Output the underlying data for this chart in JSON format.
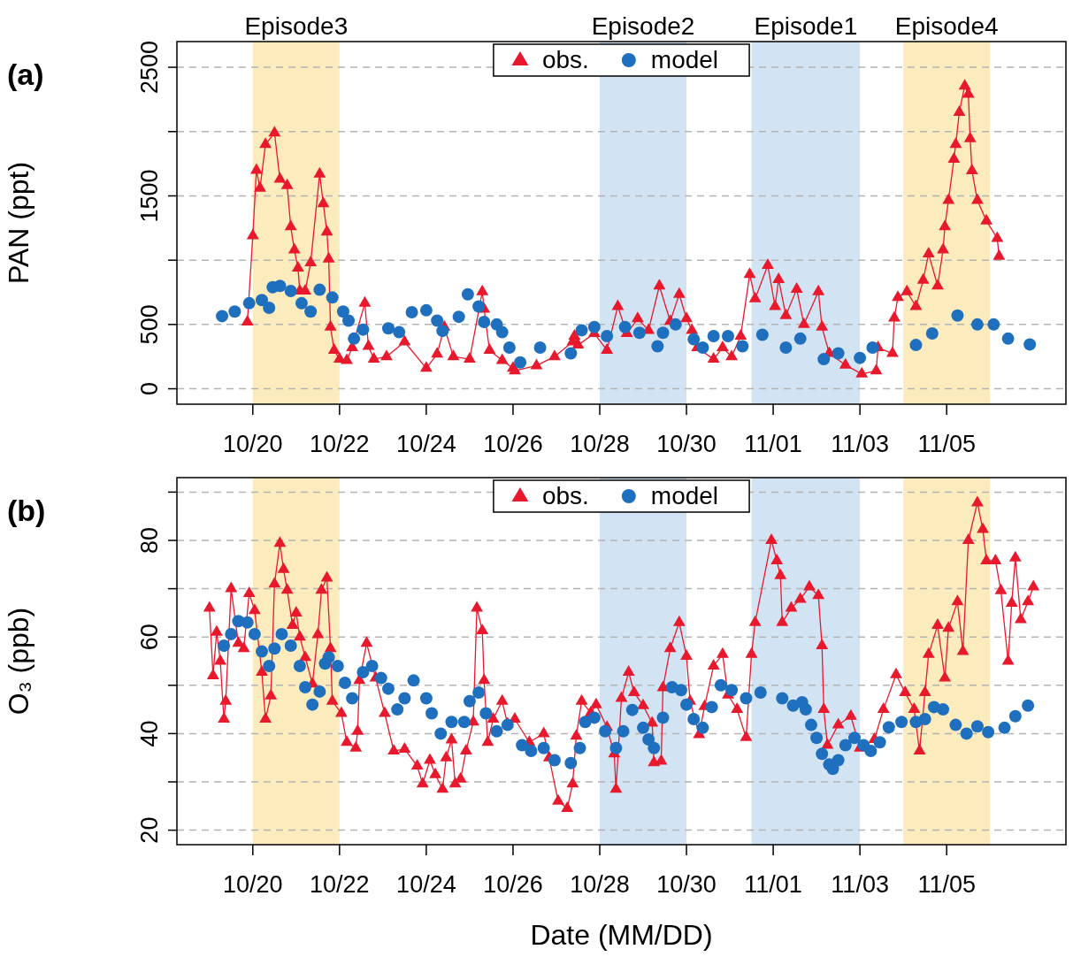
{
  "chart_data": [
    {
      "type": "line",
      "ylabel": "PAN (ppt)",
      "annotations": [
        "(a)"
      ],
      "legend": "top",
      "grid": "y",
      "xlim": [
        "--10-18T06:00",
        "--11-07T18:00"
      ],
      "xticks": [
        {
          "value": "--10-20",
          "label": "10/20"
        },
        {
          "value": "--10-22",
          "label": "10/22"
        },
        {
          "value": "--10-24",
          "label": "10/24"
        },
        {
          "value": "--10-26",
          "label": "10/26"
        },
        {
          "value": "--10-28",
          "label": "10/28"
        },
        {
          "value": "--10-30",
          "label": "10/30"
        },
        {
          "value": "--11-01",
          "label": "11/01"
        },
        {
          "value": "--11-03",
          "label": "11/03"
        },
        {
          "value": "--11-05",
          "label": "11/05"
        }
      ],
      "ylim": [
        -120,
        2700
      ],
      "yticks": [
        0,
        500,
        {
          "value": 1000,
          "label": null
        },
        1500,
        {
          "value": 2000,
          "label": null
        },
        2500
      ],
      "bands": [
        {
          "axis": "x",
          "from": "--10-20",
          "to": "--10-22",
          "label": "Episode3",
          "color": "#fcebbd"
        },
        {
          "axis": "x",
          "from": "--10-28",
          "to": "--10-30",
          "label": "Episode2",
          "color": "#d2e3f3"
        },
        {
          "axis": "x",
          "from": "--10-31T12:00",
          "to": "--11-03",
          "label": "Episode1",
          "color": "#d2e3f3"
        },
        {
          "axis": "x",
          "from": "--11-04",
          "to": "--11-06",
          "label": "Episode4",
          "color": "#fcebbd"
        }
      ],
      "series": [
        {
          "name": "obs.",
          "type": "line",
          "marker": "triangle",
          "color": "#e8192c",
          "x": [
            "--10-19T21:00",
            "--10-20T00:00",
            "--10-20T02:00",
            "--10-20T04:00",
            "--10-20T07:00",
            "--10-20T12:00",
            "--10-20T15:00",
            "--10-20T19:00",
            "--10-20T21:00",
            "--10-20T23:00",
            "--10-21T01:00",
            "--10-21T02:00",
            "--10-21T05:00",
            "--10-21T08:00",
            "--10-21T13:00",
            "--10-21T15:00",
            "--10-21T17:00",
            "--10-21T18:00",
            "--10-21T19:00",
            "--10-21T21:00",
            "--10-22T00:00",
            "--10-22T04:00",
            "--10-22T07:00",
            "--10-22T14:00",
            "--10-22T16:00",
            "--10-22T19:00",
            "--10-23T02:00",
            "--10-23T12:00",
            "--10-24T00:00",
            "--10-24T06:00",
            "--10-24T10:00",
            "--10-24T15:00",
            "--10-25T00:00",
            "--10-25T07:00",
            "--10-25T08:00",
            "--10-25T11:00",
            "--10-25T18:00",
            "--10-26T00:00",
            "--10-26T01:00",
            "--10-26T13:00",
            "--10-26T23:00",
            "--10-27T09:00",
            "--10-27T10:00",
            "--10-27T12:00",
            "--10-27T21:00",
            "--10-28T04:00",
            "--10-28T10:00",
            "--10-28T15:00",
            "--10-28T21:00",
            "--10-29T03:00",
            "--10-29T09:00",
            "--10-29T15:00",
            "--10-29T20:00",
            "--10-30T00:00",
            "--10-30T03:00",
            "--10-30T06:00",
            "--10-30T15:00",
            "--10-30T20:00",
            "--10-31T01:00",
            "--10-31T06:00",
            "--10-31T11:00",
            "--10-31T14:00",
            "--10-31T21:00",
            "--11-01T01:00",
            "--11-01T03:00",
            "--11-01T07:00",
            "--11-01T13:00",
            "--11-01T17:00",
            "--11-02T01:00",
            "--11-02T03:00",
            "--11-02T07:00",
            "--11-02T16:00",
            "--11-03T01:00",
            "--11-03T09:00",
            "--11-03T10:00",
            "--11-03T18:00",
            "--11-03T19:00",
            "--11-03T21:00",
            "--11-04T02:00",
            "--11-04T07:00",
            "--11-04T11:00",
            "--11-04T14:00",
            "--11-04T19:00",
            "--11-04T22:00",
            "--11-04T23:00",
            "--11-05T01:00",
            "--11-05T04:00",
            "--11-05T05:00",
            "--11-05T07:00",
            "--11-05T10:00",
            "--11-05T12:00",
            "--11-05T13:00",
            "--11-05T14:00",
            "--11-05T17:00",
            "--11-05T22:00",
            "--11-06T04:00",
            "--11-06T05:00"
          ],
          "values": [
            520,
            1190,
            1700,
            1560,
            1900,
            1990,
            1630,
            1580,
            1260,
            1080,
            940,
            760,
            760,
            980,
            1670,
            1440,
            1220,
            1010,
            480,
            300,
            230,
            220,
            320,
            665,
            330,
            230,
            250,
            365,
            160,
            270,
            480,
            250,
            230,
            755,
            620,
            300,
            220,
            160,
            140,
            180,
            250,
            365,
            410,
            340,
            430,
            300,
            640,
            430,
            545,
            455,
            800,
            525,
            735,
            545,
            455,
            320,
            230,
            320,
            250,
            410,
            890,
            700,
            960,
            640,
            850,
            570,
            775,
            500,
            755,
            480,
            275,
            185,
            115,
            140,
            320,
            275,
            550,
            710,
            755,
            640,
            845,
            1050,
            800,
            1080,
            1260,
            1465,
            1785,
            1900,
            2150,
            2355,
            2290,
            1945,
            1695,
            1465,
            1305,
            1170,
            1030
          ]
        },
        {
          "name": "model",
          "type": "scatter",
          "marker": "circle",
          "color": "#1f6fbf",
          "x": [
            "--10-19T07:00",
            "--10-19T14:00",
            "--10-19T22:00",
            "--10-20T05:00",
            "--10-20T09:00",
            "--10-20T11:00",
            "--10-20T15:00",
            "--10-20T21:00",
            "--10-21T03:00",
            "--10-21T08:00",
            "--10-21T13:00",
            "--10-21T20:00",
            "--10-22T02:00",
            "--10-22T05:00",
            "--10-22T08:00",
            "--10-22T13:00",
            "--10-23T03:00",
            "--10-23T09:00",
            "--10-23T16:00",
            "--10-24T00:00",
            "--10-24T06:00",
            "--10-24T09:00",
            "--10-24T18:00",
            "--10-24T23:00",
            "--10-25T05:00",
            "--10-25T08:00",
            "--10-25T15:00",
            "--10-25T18:00",
            "--10-25T22:00",
            "--10-26T04:00",
            "--10-26T15:00",
            "--10-27T08:00",
            "--10-27T14:00",
            "--10-27T21:00",
            "--10-28T04:00",
            "--10-28T14:00",
            "--10-28T22:00",
            "--10-29T08:00",
            "--10-29T11:00",
            "--10-29T18:00",
            "--10-30T04:00",
            "--10-30T09:00",
            "--10-30T15:00",
            "--10-30T23:00",
            "--10-31T07:00",
            "--10-31T18:00",
            "--11-01T07:00",
            "--11-01T15:00",
            "--11-02T04:00",
            "--11-02T12:00",
            "--11-03T00:00",
            "--11-03T07:00",
            "--11-04T07:00",
            "--11-04T16:00",
            "--11-05T06:00",
            "--11-05T17:00",
            "--11-06T02:00",
            "--11-06T10:00",
            "--11-06T22:00"
          ],
          "values": [
            565,
            600,
            665,
            690,
            630,
            790,
            800,
            760,
            665,
            600,
            770,
            710,
            600,
            530,
            390,
            460,
            470,
            440,
            595,
            610,
            530,
            450,
            560,
            735,
            640,
            520,
            500,
            440,
            320,
            205,
            320,
            275,
            455,
            480,
            410,
            480,
            435,
            330,
            435,
            500,
            385,
            320,
            410,
            410,
            330,
            420,
            320,
            390,
            230,
            275,
            240,
            320,
            340,
            430,
            570,
            500,
            500,
            390,
            345
          ]
        }
      ]
    },
    {
      "type": "line",
      "ylabel": "O₃ (ppb)",
      "xlabel": "Date (MM/DD)",
      "annotations": [
        "(b)"
      ],
      "legend": "top",
      "grid": "y",
      "xlim": [
        "--10-18T06:00",
        "--11-07T18:00"
      ],
      "xticks": [
        {
          "value": "--10-20",
          "label": "10/20"
        },
        {
          "value": "--10-22",
          "label": "10/22"
        },
        {
          "value": "--10-24",
          "label": "10/24"
        },
        {
          "value": "--10-26",
          "label": "10/26"
        },
        {
          "value": "--10-28",
          "label": "10/28"
        },
        {
          "value": "--10-30",
          "label": "10/30"
        },
        {
          "value": "--11-01",
          "label": "11/01"
        },
        {
          "value": "--11-03",
          "label": "11/03"
        },
        {
          "value": "--11-05",
          "label": "11/05"
        }
      ],
      "ylim": [
        17,
        93
      ],
      "yticks": [
        20,
        {
          "value": 30,
          "label": null
        },
        40,
        {
          "value": 50,
          "label": null
        },
        60,
        {
          "value": 70,
          "label": null
        },
        80,
        {
          "value": 90,
          "label": null
        }
      ],
      "bands": [
        {
          "axis": "x",
          "from": "--10-20",
          "to": "--10-22",
          "color": "#fcebbd"
        },
        {
          "axis": "x",
          "from": "--10-28",
          "to": "--10-30",
          "color": "#d2e3f3"
        },
        {
          "axis": "x",
          "from": "--10-31T12:00",
          "to": "--11-03",
          "color": "#d2e3f3"
        },
        {
          "axis": "x",
          "from": "--11-04",
          "to": "--11-06",
          "color": "#fcebbd"
        }
      ],
      "series": [
        {
          "name": "obs.",
          "type": "line",
          "marker": "triangle",
          "color": "#e8192c",
          "x": [
            "--10-19T00:00",
            "--10-19T02:00",
            "--10-19T04:00",
            "--10-19T06:00",
            "--10-19T08:00",
            "--10-19T09:00",
            "--10-19T12:00",
            "--10-19T16:00",
            "--10-19T19:00",
            "--10-19T22:00",
            "--10-20T01:00",
            "--10-20T05:00",
            "--10-20T07:00",
            "--10-20T10:00",
            "--10-20T12:00",
            "--10-20T15:00",
            "--10-20T17:00",
            "--10-20T19:00",
            "--10-20T22:00",
            "--10-21T00:00",
            "--10-21T02:00",
            "--10-21T05:00",
            "--10-21T09:00",
            "--10-21T12:00",
            "--10-21T14:00",
            "--10-21T17:00",
            "--10-21T19:00",
            "--10-21T20:00",
            "--10-22T01:00",
            "--10-22T04:00",
            "--10-22T09:00",
            "--10-22T10:00",
            "--10-22T11:00",
            "--10-22T15:00",
            "--10-22T20:00",
            "--10-23T01:00",
            "--10-23T06:00",
            "--10-23T12:00",
            "--10-23T19:00",
            "--10-23T22:00",
            "--10-24T02:00",
            "--10-24T05:00",
            "--10-24T09:00",
            "--10-24T11:00",
            "--10-24T14:00",
            "--10-24T16:00",
            "--10-24T19:00",
            "--10-24T22:00",
            "--10-25T02:00",
            "--10-25T04:00",
            "--10-25T07:00",
            "--10-25T08:00",
            "--10-25T10:00",
            "--10-25T13:00",
            "--10-25T18:00",
            "--10-25T21:00",
            "--10-26T01:00",
            "--10-26T09:00",
            "--10-26T17:00",
            "--10-26T20:00",
            "--10-27T01:00",
            "--10-27T06:00",
            "--10-27T09:00",
            "--10-27T11:00",
            "--10-27T14:00",
            "--10-27T19:00",
            "--10-27T22:00",
            "--10-28T04:00",
            "--10-28T08:00",
            "--10-28T09:00",
            "--10-28T12:00",
            "--10-28T16:00",
            "--10-28T19:00",
            "--10-29T00:00",
            "--10-29T05:00",
            "--10-29T06:00",
            "--10-29T10:00",
            "--10-29T11:00",
            "--10-29T15:00",
            "--10-29T20:00",
            "--10-30T00:00",
            "--10-30T02:00",
            "--10-30T07:00",
            "--10-30T10:00",
            "--10-30T15:00",
            "--10-30T20:00",
            "--10-30T23:00",
            "--10-31T04:00",
            "--10-31T09:00",
            "--10-31T12:00",
            "--10-31T14:00",
            "--10-31T23:00",
            "--11-01T02:00",
            "--11-01T04:00",
            "--11-01T05:00",
            "--11-01T10:00",
            "--11-01T15:00",
            "--11-01T20:00",
            "--11-02T01:00",
            "--11-02T03:00",
            "--11-02T04:00",
            "--11-02T06:00",
            "--11-02T12:00",
            "--11-02T19:00",
            "--11-03T00:00",
            "--11-03T08:00",
            "--11-03T13:00",
            "--11-03T20:00",
            "--11-04T01:00",
            "--11-04T06:00",
            "--11-04T09:00",
            "--11-04T12:00",
            "--11-04T14:00",
            "--11-04T19:00",
            "--11-04T23:00",
            "--11-05T01:00",
            "--11-05T06:00",
            "--11-05T09:00",
            "--11-05T12:00",
            "--11-05T17:00",
            "--11-05T20:00",
            "--11-05T22:00",
            "--11-06T03:00",
            "--11-06T06:00",
            "--11-06T10:00",
            "--11-06T12:00",
            "--11-06T14:00",
            "--11-06T17:00",
            "--11-06T21:00",
            "--11-07T00:00"
          ],
          "values": [
            66,
            52,
            61,
            55,
            43,
            46.7,
            70,
            58.7,
            57.6,
            69,
            65.5,
            52.7,
            43,
            47.8,
            71,
            79.4,
            74,
            69.7,
            62.4,
            65,
            60,
            55.8,
            50.3,
            60.5,
            69.7,
            72.2,
            57.6,
            46.7,
            44.2,
            38.2,
            37,
            40.5,
            51,
            58.7,
            51.5,
            44.2,
            36.4,
            36.8,
            33.3,
            29.6,
            34.5,
            31.5,
            28.5,
            35,
            38.7,
            29.6,
            30.6,
            36.4,
            42.4,
            66,
            61.3,
            51,
            38.2,
            43,
            46.7,
            42,
            43,
            38.2,
            40,
            35,
            26,
            24.5,
            29.6,
            39.5,
            46.7,
            44.3,
            46,
            41.3,
            35.8,
            28.5,
            47.3,
            52.7,
            48.5,
            45.8,
            42.2,
            34,
            34.3,
            49.5,
            57.6,
            63,
            56,
            46.7,
            39.8,
            45.6,
            54,
            56.4,
            48,
            45,
            39.2,
            56.4,
            63,
            80,
            75.8,
            72.7,
            63,
            66,
            67.8,
            70.4,
            68.6,
            58.2,
            45,
            37.6,
            41.8,
            43.6,
            37,
            38.8,
            45,
            52.2,
            48.5,
            45,
            36.4,
            48.5,
            56.4,
            62.4,
            51.5,
            61.8,
            67.3,
            57,
            80,
            87.8,
            82.3,
            75.8,
            75.8,
            69.6,
            55,
            67,
            76.4,
            63.6,
            67.3,
            70.4
          ]
        },
        {
          "name": "model",
          "type": "scatter",
          "marker": "circle",
          "color": "#1f6fbf",
          "x": [
            "--10-19T08:00",
            "--10-19T12:00",
            "--10-19T16:00",
            "--10-19T21:00",
            "--10-20T01:00",
            "--10-20T05:00",
            "--10-20T09:00",
            "--10-20T12:00",
            "--10-20T16:00",
            "--10-20T21:00",
            "--10-21T02:00",
            "--10-21T05:00",
            "--10-21T09:00",
            "--10-21T13:00",
            "--10-21T16:00",
            "--10-21T18:00",
            "--10-21T23:00",
            "--10-22T03:00",
            "--10-22T07:00",
            "--10-22T13:00",
            "--10-22T18:00",
            "--10-22T23:00",
            "--10-23T03:00",
            "--10-23T08:00",
            "--10-23T12:00",
            "--10-23T17:00",
            "--10-24T00:00",
            "--10-24T03:00",
            "--10-24T08:00",
            "--10-24T14:00",
            "--10-24T21:00",
            "--10-25T00:00",
            "--10-25T05:00",
            "--10-25T09:00",
            "--10-25T15:00",
            "--10-25T21:00",
            "--10-26T05:00",
            "--10-26T10:00",
            "--10-26T17:00",
            "--10-26T23:00",
            "--10-27T08:00",
            "--10-27T13:00",
            "--10-27T16:00",
            "--10-27T21:00",
            "--10-28T03:00",
            "--10-28T09:00",
            "--10-28T13:00",
            "--10-28T18:00",
            "--10-29T00:00",
            "--10-29T03:00",
            "--10-29T06:00",
            "--10-29T11:00",
            "--10-29T16:00",
            "--10-29T21:00",
            "--10-30T00:00",
            "--10-30T04:00",
            "--10-30T09:00",
            "--10-30T14:00",
            "--10-30T19:00",
            "--10-31T01:00",
            "--10-31T09:00",
            "--10-31T17:00",
            "--11-01T05:00",
            "--11-01T11:00",
            "--11-01T16:00",
            "--11-01T18:00",
            "--11-01T21:00",
            "--11-02T00:00",
            "--11-02T03:00",
            "--11-02T07:00",
            "--11-02T09:00",
            "--11-02T12:00",
            "--11-02T16:00",
            "--11-02T21:00",
            "--11-03T02:00",
            "--11-03T06:00",
            "--11-03T11:00",
            "--11-03T16:00",
            "--11-03T23:00",
            "--11-04T07:00",
            "--11-04T12:00",
            "--11-04T17:00",
            "--11-04T22:00",
            "--11-05T05:00",
            "--11-05T11:00",
            "--11-05T17:00",
            "--11-05T23:00",
            "--11-06T08:00",
            "--11-06T14:00",
            "--11-06T21:00"
          ],
          "values": [
            58.2,
            60.6,
            63.3,
            63,
            60.6,
            57,
            54,
            57.6,
            60.6,
            58.2,
            54,
            49.6,
            46,
            48.7,
            54.5,
            55.8,
            54,
            50.5,
            47.3,
            52.7,
            54,
            51.5,
            49.3,
            45,
            47.3,
            51,
            47.3,
            44.2,
            40,
            42.4,
            42.4,
            46.7,
            48.5,
            44.2,
            40.5,
            41.8,
            37.6,
            36.4,
            37,
            34.5,
            33.9,
            37,
            42.4,
            43.3,
            40.5,
            37,
            40.5,
            44.9,
            41.2,
            38.8,
            37,
            43.3,
            49.6,
            49,
            46,
            43,
            41.2,
            45.5,
            50,
            49,
            47.3,
            48.5,
            47.3,
            45.8,
            46.5,
            45,
            41.8,
            39.1,
            35.8,
            33.6,
            32.7,
            34.5,
            37.6,
            39.1,
            37.6,
            36.4,
            38.2,
            41.3,
            42.4,
            42.4,
            43,
            45.5,
            45,
            41.8,
            40,
            41.5,
            40.3,
            41.2,
            43.6,
            45.8
          ]
        }
      ]
    }
  ]
}
